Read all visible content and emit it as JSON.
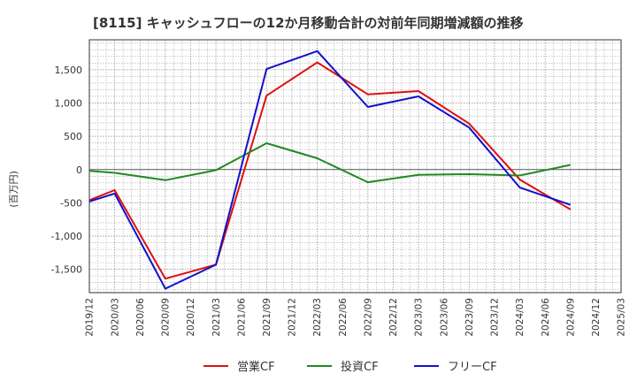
{
  "chart_data": {
    "type": "line",
    "title": "[8115]  キャッシュフローの12か月移動合計の対前年同期増減額の推移",
    "ylabel": "(百万円)",
    "xlabel": "",
    "ylim": [
      -1850,
      1950
    ],
    "yticks": [
      1500,
      1000,
      500,
      0,
      -500,
      -1000,
      -1500
    ],
    "ytick_labels": [
      "1,500",
      "1,000",
      "500",
      "0",
      "-500",
      "-1,000",
      "-1,500"
    ],
    "categories": [
      "2019/12",
      "2020/03",
      "2020/06",
      "2020/09",
      "2020/12",
      "2021/03",
      "2021/06",
      "2021/09",
      "2021/12",
      "2022/03",
      "2022/06",
      "2022/09",
      "2022/12",
      "2023/03",
      "2023/06",
      "2023/09",
      "2023/12",
      "2024/03",
      "2024/06",
      "2024/09",
      "2024/12",
      "2025/03"
    ],
    "grid": true,
    "legend_position": "bottom",
    "series": [
      {
        "name": "営業CF",
        "color": "#dd1111",
        "values": [
          -460,
          -310,
          null,
          -1640,
          null,
          -1430,
          null,
          1110,
          null,
          1610,
          null,
          1130,
          null,
          1180,
          null,
          690,
          null,
          -150,
          null,
          -600,
          null,
          null
        ]
      },
      {
        "name": "投資CF",
        "color": "#228822",
        "values": [
          -20,
          -50,
          null,
          -160,
          null,
          -10,
          null,
          395,
          null,
          170,
          null,
          -190,
          null,
          -80,
          null,
          -70,
          null,
          -90,
          null,
          70,
          null,
          null
        ]
      },
      {
        "name": "フリーCF",
        "color": "#1111cc",
        "values": [
          -480,
          -360,
          null,
          -1790,
          null,
          -1430,
          null,
          1510,
          null,
          1780,
          null,
          940,
          null,
          1100,
          null,
          630,
          null,
          -270,
          null,
          -530,
          null,
          null
        ]
      }
    ]
  }
}
